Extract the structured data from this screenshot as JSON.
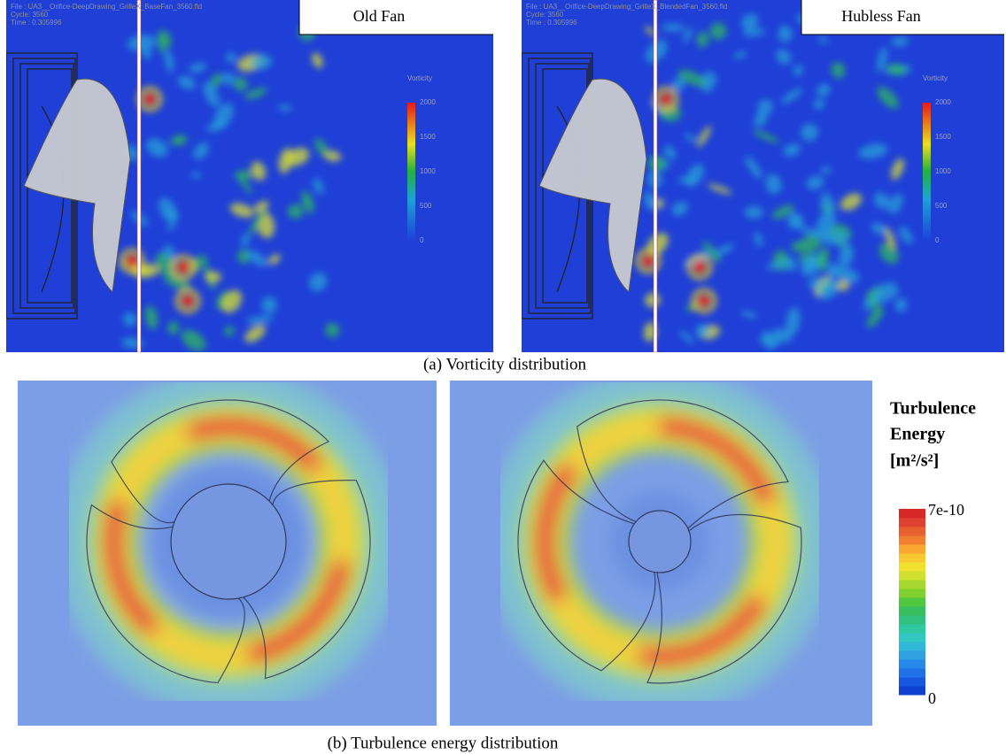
{
  "vorticity": {
    "caption": "(a) Vorticity distribution",
    "panels": [
      {
        "title": "Old Fan",
        "file": "File : UA3__Orifice-DeepDrawing_GrilleX_BaseFan_3560.fld",
        "cycle": "Cycle: 3560",
        "time": "Time : 0.305996",
        "colorbar_title": "Vorticity"
      },
      {
        "title": "Hubless Fan",
        "file": "File : UA3__Orifice-DeepDrawing_GrilleX_BlendedFan_3560.fld",
        "cycle": "Cycle: 3560",
        "time": "Time : 0.305996",
        "colorbar_title": "Vorticity"
      }
    ],
    "colorbar_ticks": [
      2000,
      1500,
      1000,
      500,
      0
    ]
  },
  "turbulence": {
    "caption": "(b) Turbulence energy distribution",
    "colorbar": {
      "title_lines": [
        "Turbulence",
        "Energy"
      ],
      "unit": "[m²/s²]",
      "max_label": "7e-10",
      "min_label": "0"
    }
  }
}
